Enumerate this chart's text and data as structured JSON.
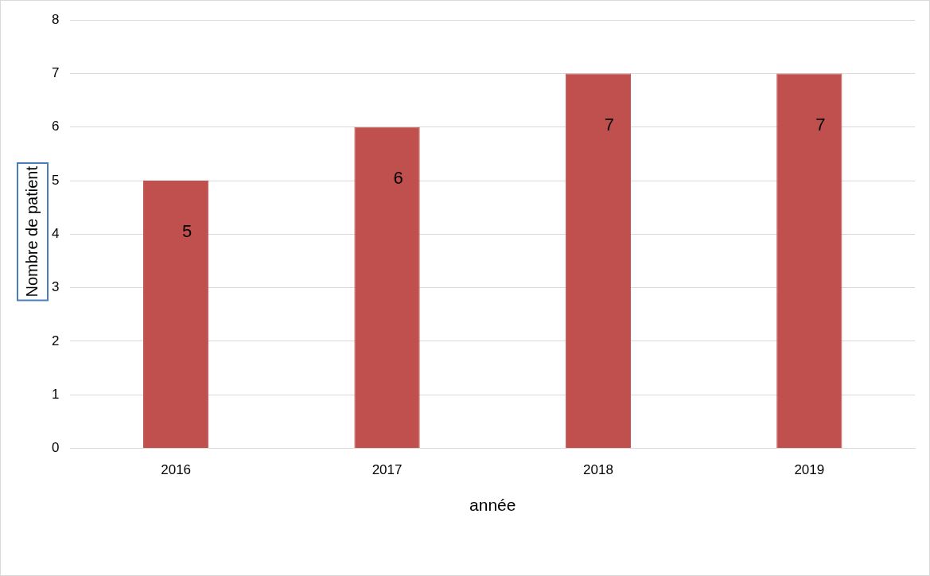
{
  "chart_data": {
    "type": "bar",
    "xlabel": "année",
    "ylabel": "Nombre de patient",
    "categories": [
      "2016",
      "2017",
      "2018",
      "2019"
    ],
    "values": [
      5,
      6,
      7,
      7
    ],
    "color": "#c0504d",
    "ylim": [
      0,
      8
    ],
    "yticks": [
      0,
      1,
      2,
      3,
      4,
      5,
      6,
      7,
      8
    ],
    "grid": "y",
    "legend": false,
    "data_labels": true
  }
}
